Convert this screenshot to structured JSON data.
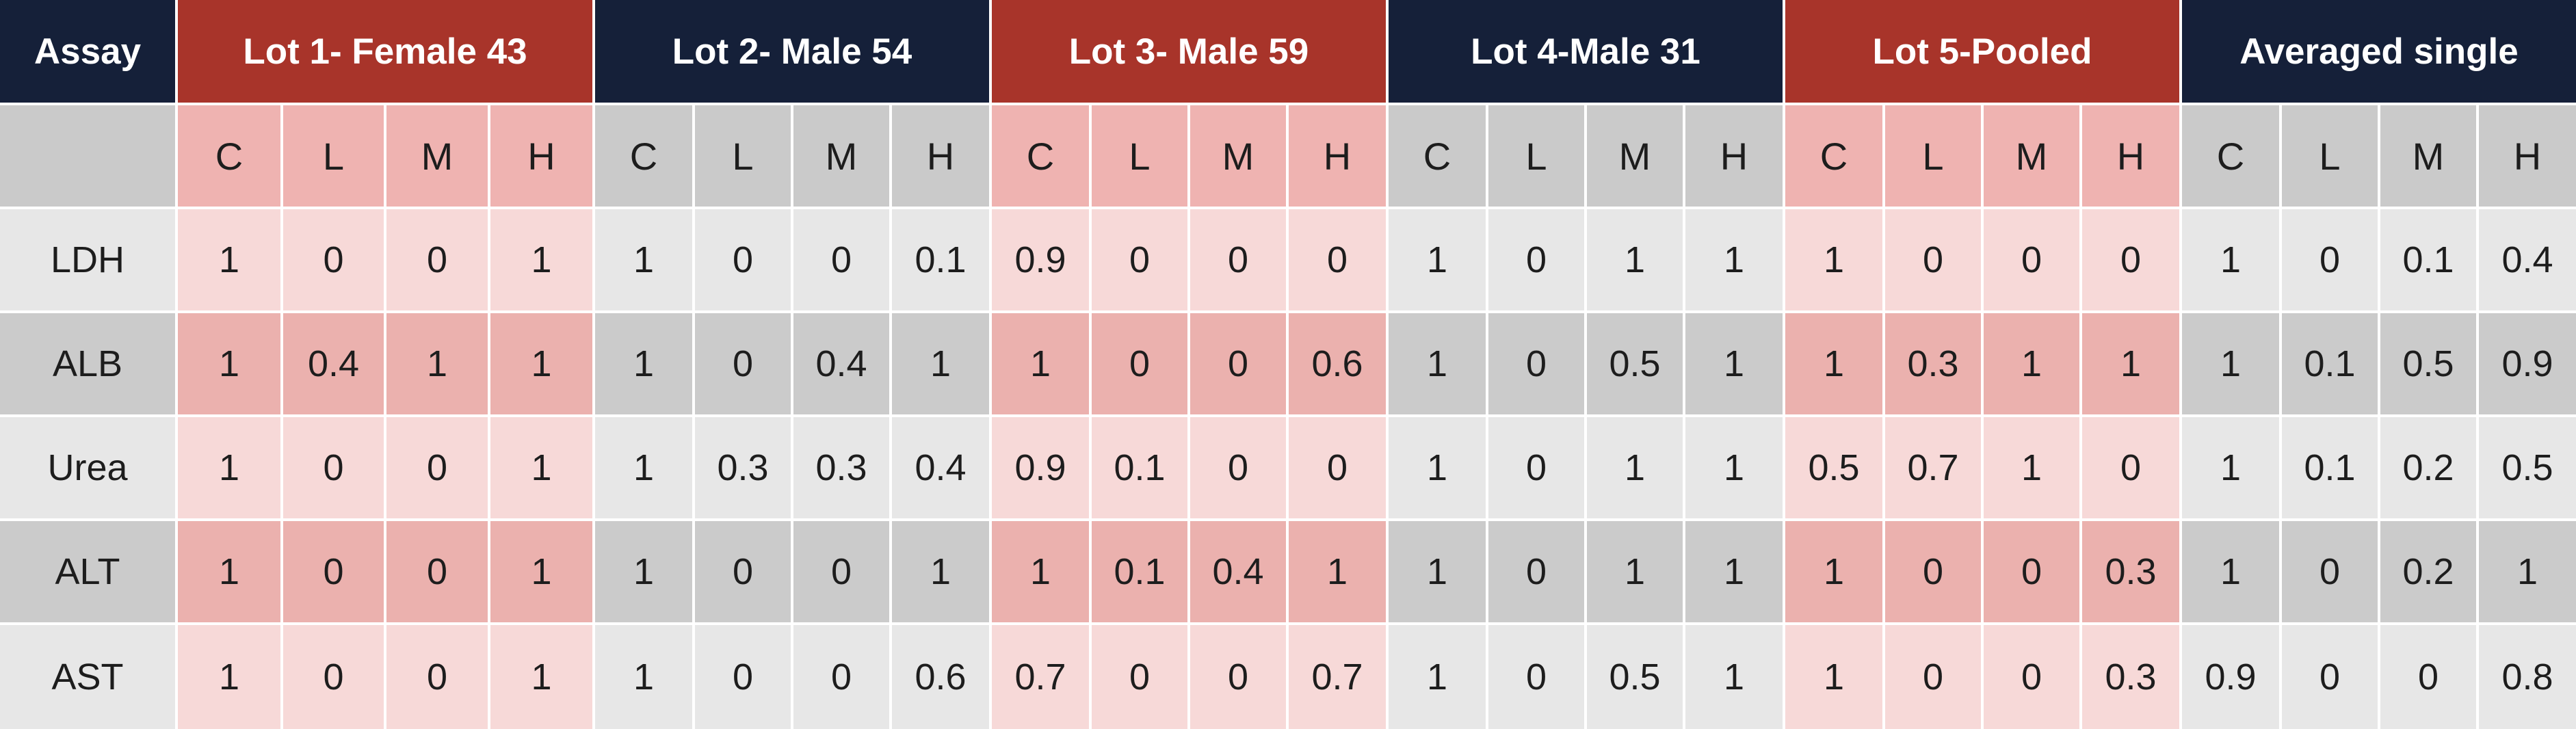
{
  "table": {
    "assay_header": "Assay",
    "groups": [
      {
        "label": "Lot 1- Female 43",
        "theme": "red"
      },
      {
        "label": "Lot 2- Male 54",
        "theme": "gray"
      },
      {
        "label": "Lot 3- Male 59",
        "theme": "red"
      },
      {
        "label": "Lot 4-Male 31",
        "theme": "gray"
      },
      {
        "label": "Lot 5-Pooled",
        "theme": "red"
      },
      {
        "label": "Averaged single",
        "theme": "gray"
      }
    ],
    "sub_columns": [
      "C",
      "L",
      "M",
      "H"
    ],
    "rows": [
      {
        "assay": "LDH",
        "values": [
          "1",
          "0",
          "0",
          "1",
          "1",
          "0",
          "0",
          "0.1",
          "0.9",
          "0",
          "0",
          "0",
          "1",
          "0",
          "1",
          "1",
          "1",
          "0",
          "0",
          "0",
          "1",
          "0",
          "0.1",
          "0.4"
        ]
      },
      {
        "assay": "ALB",
        "values": [
          "1",
          "0.4",
          "1",
          "1",
          "1",
          "0",
          "0.4",
          "1",
          "1",
          "0",
          "0",
          "0.6",
          "1",
          "0",
          "0.5",
          "1",
          "1",
          "0.3",
          "1",
          "1",
          "1",
          "0.1",
          "0.5",
          "0.9"
        ]
      },
      {
        "assay": "Urea",
        "values": [
          "1",
          "0",
          "0",
          "1",
          "1",
          "0.3",
          "0.3",
          "0.4",
          "0.9",
          "0.1",
          "0",
          "0",
          "1",
          "0",
          "1",
          "1",
          "0.5",
          "0.7",
          "1",
          "0",
          "1",
          "0.1",
          "0.2",
          "0.5"
        ]
      },
      {
        "assay": "ALT",
        "values": [
          "1",
          "0",
          "0",
          "1",
          "1",
          "0",
          "0",
          "1",
          "1",
          "0.1",
          "0.4",
          "1",
          "1",
          "0",
          "1",
          "1",
          "1",
          "0",
          "0",
          "0.3",
          "1",
          "0",
          "0.2",
          "1"
        ]
      },
      {
        "assay": "AST",
        "values": [
          "1",
          "0",
          "0",
          "1",
          "1",
          "0",
          "0",
          "0.6",
          "0.7",
          "0",
          "0",
          "0.7",
          "1",
          "0",
          "0.5",
          "1",
          "1",
          "0",
          "0",
          "0.3",
          "0.9",
          "0",
          "0",
          "0.8"
        ]
      }
    ]
  },
  "colors": {
    "header_dark": "#152039",
    "header_red": "#a8342a",
    "red_light": "#f7d9d8",
    "red_mid": "#ebb1ae",
    "gray_light": "#e7e7e7",
    "gray_mid": "#cbcbcb"
  }
}
